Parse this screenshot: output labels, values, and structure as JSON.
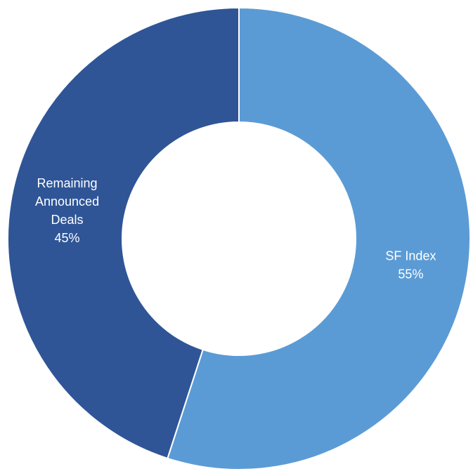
{
  "chart_data": {
    "type": "pie",
    "variant": "donut",
    "title": "",
    "legend": "none",
    "categories": [
      "SF Index",
      "Remaining Announced Deals"
    ],
    "values": [
      55,
      45
    ],
    "slices": [
      {
        "name": "SF Index",
        "value": 55,
        "label_lines": [
          "SF Index",
          "55%"
        ],
        "color": "#5b9bd5"
      },
      {
        "name": "Remaining Announced Deals",
        "value": 45,
        "label_lines": [
          "Remaining",
          "Announced",
          "Deals",
          "45%"
        ],
        "color": "#2f5597"
      }
    ]
  }
}
